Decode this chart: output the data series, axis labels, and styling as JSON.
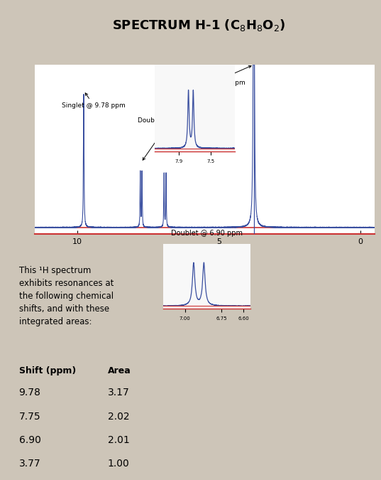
{
  "title_display": "SPECTRUM H-1 (C$_8$H$_8$O$_2$)",
  "background_color": "#cdc5b8",
  "header_color": "#85aed0",
  "spectrum_line_color": "#3a4fa0",
  "spectrum_bg": "#ffffff",
  "axis_color": "#cc3333",
  "ann_singlet_377": "Singlet @ 3.77 ppm",
  "ann_doublet_775": "Doublet @ 7.75 ppm",
  "ann_singlet_978": "Singlet @ 9.78 ppm",
  "ann_doublet_690": "Doublet @ 6.90 ppm",
  "table_bg": "#b8b0a8",
  "table_text": "This ¹H spectrum\nexhibits resonances at\nthe following chemical\nshifts, and with these\nintegrated areas:",
  "table_header": [
    "Shift (ppm)",
    "Area"
  ],
  "table_data": [
    [
      "9.78",
      "3.17"
    ],
    [
      "7.75",
      "2.02"
    ],
    [
      "6.90",
      "2.01"
    ],
    [
      "3.77",
      "1.00"
    ]
  ]
}
